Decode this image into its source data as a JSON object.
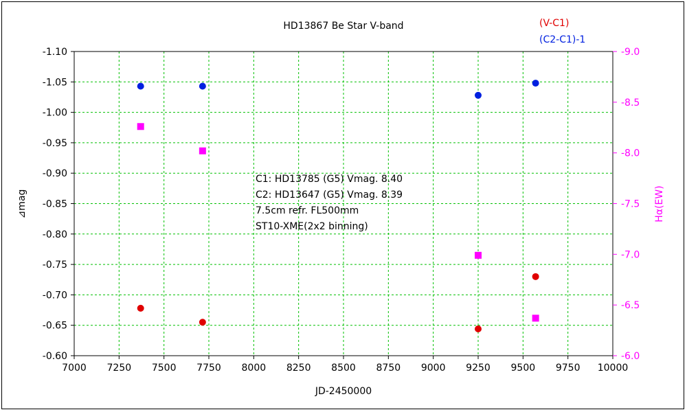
{
  "chart_data": {
    "type": "scatter",
    "title": "HD13867    Be Star    V-band",
    "xlabel": "JD-2450000",
    "ylabel_left": "⊿mag",
    "ylabel_right": "Hα(EW)",
    "xlim": [
      7000,
      10000
    ],
    "xticks": [
      "7000",
      "7250",
      "7500",
      "7750",
      "8000",
      "8250",
      "8500",
      "8750",
      "9000",
      "9250",
      "9500",
      "9750",
      "10000"
    ],
    "ylim_left": [
      -0.6,
      -1.1
    ],
    "yticks_left": [
      "-0.60",
      "-0.65",
      "-0.70",
      "-0.75",
      "-0.80",
      "-0.85",
      "-0.90",
      "-0.95",
      "-1.00",
      "-1.05",
      "-1.10"
    ],
    "ylim_right": [
      -6.0,
      -9.0
    ],
    "yticks_right": [
      "-6.0",
      "-6.5",
      "-7.0",
      "-7.5",
      "-8.0",
      "-8.5",
      "-9.0"
    ],
    "grid": true,
    "legend_position": "top-right",
    "colors": {
      "vc1": "#e00000",
      "c2c1": "#0020e0",
      "halpha": "#ff00ff",
      "grid": "#00c000",
      "right_axis": "#ff00ff"
    },
    "series": [
      {
        "name": "(V-C1)",
        "axis": "left",
        "marker": "circle",
        "color": "#e00000",
        "x": [
          7370,
          7715,
          9250,
          9570
        ],
        "y": [
          -0.678,
          -0.655,
          -0.644,
          -0.73
        ]
      },
      {
        "name": "(C2-C1)-1",
        "axis": "left",
        "marker": "circle",
        "color": "#0020e0",
        "x": [
          7370,
          7715,
          9250,
          9570
        ],
        "y": [
          -1.043,
          -1.043,
          -1.028,
          -1.048
        ]
      },
      {
        "name": "",
        "axis": "right",
        "marker": "square",
        "color": "#ff00ff",
        "x": [
          7370,
          7715,
          9250,
          9570
        ],
        "y": [
          -8.26,
          -8.02,
          -6.99,
          -6.37
        ]
      }
    ],
    "annotation": [
      "C1: HD13785 (G5) Vmag. 8.40",
      "C2: HD13647 (G5) Vmag. 8.39",
      "7.5cm refr. FL500mm",
      "ST10-XME(2x2 binning)"
    ]
  }
}
